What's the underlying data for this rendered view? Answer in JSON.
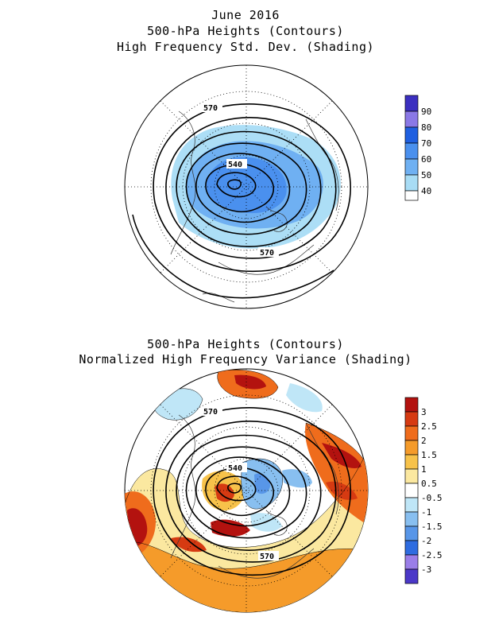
{
  "panel_top": {
    "title_lines": [
      "June 2016",
      "500-hPa Heights (Contours)",
      "High Frequency Std. Dev. (Shading)"
    ],
    "contour_labels": [
      "570",
      "540",
      "570"
    ],
    "legend": {
      "levels": [
        "90",
        "80",
        "70",
        "60",
        "50",
        "40"
      ],
      "colors": [
        "#3b2fc0",
        "#8a78e6",
        "#1f5fe0",
        "#4a90ee",
        "#a8dcf5",
        "#ffffff"
      ]
    }
  },
  "panel_bottom": {
    "title_lines": [
      "500-hPa Heights (Contours)",
      "Normalized High Frequency Variance (Shading)"
    ],
    "contour_labels": [
      "570",
      "540",
      "570"
    ],
    "legend": {
      "levels": [
        "3",
        "2.5",
        "2",
        "1.5",
        "1",
        "0.5",
        "-0.5",
        "-1",
        "-1.5",
        "-2",
        "-2.5",
        "-3"
      ],
      "colors": [
        "#b3120f",
        "#d63a12",
        "#ef6c1c",
        "#f59b2a",
        "#f7c24a",
        "#fbe8a0",
        "#ffffff",
        "#bfe6f7",
        "#88bff0",
        "#5896e8",
        "#2e6ce0",
        "#9a7ee8",
        "#4b38c8"
      ]
    }
  }
}
